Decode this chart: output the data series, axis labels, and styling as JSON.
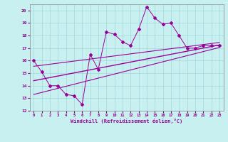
{
  "xlabel": "Windchill (Refroidissement éolien,°C)",
  "bg_color": "#c8f0f0",
  "grid_color": "#a0d8d8",
  "line_color": "#990099",
  "xlim": [
    -0.5,
    23.5
  ],
  "ylim": [
    12,
    20.5
  ],
  "xticks": [
    0,
    1,
    2,
    3,
    4,
    5,
    6,
    7,
    8,
    9,
    10,
    11,
    12,
    13,
    14,
    15,
    16,
    17,
    18,
    19,
    20,
    21,
    22,
    23
  ],
  "yticks": [
    12,
    13,
    14,
    15,
    16,
    17,
    18,
    19,
    20
  ],
  "scatter_x": [
    0,
    1,
    2,
    3,
    4,
    5,
    6,
    7,
    8,
    9,
    10,
    11,
    12,
    13,
    14,
    15,
    16,
    17,
    18,
    19,
    20,
    21,
    22,
    23
  ],
  "scatter_y": [
    16.0,
    15.1,
    14.0,
    14.0,
    13.3,
    13.2,
    12.5,
    16.5,
    15.3,
    18.3,
    18.1,
    17.5,
    17.2,
    18.5,
    20.3,
    19.4,
    18.9,
    19.0,
    18.0,
    17.0,
    17.0,
    17.2,
    17.2,
    17.2
  ],
  "reg_line": {
    "x0": 0,
    "x1": 23,
    "y0": 14.4,
    "y1": 17.25
  },
  "upper_line": {
    "x0": 0,
    "x1": 23,
    "y0": 15.55,
    "y1": 17.45
  },
  "lower_line": {
    "x0": 0,
    "x1": 23,
    "y0": 13.3,
    "y1": 17.05
  }
}
